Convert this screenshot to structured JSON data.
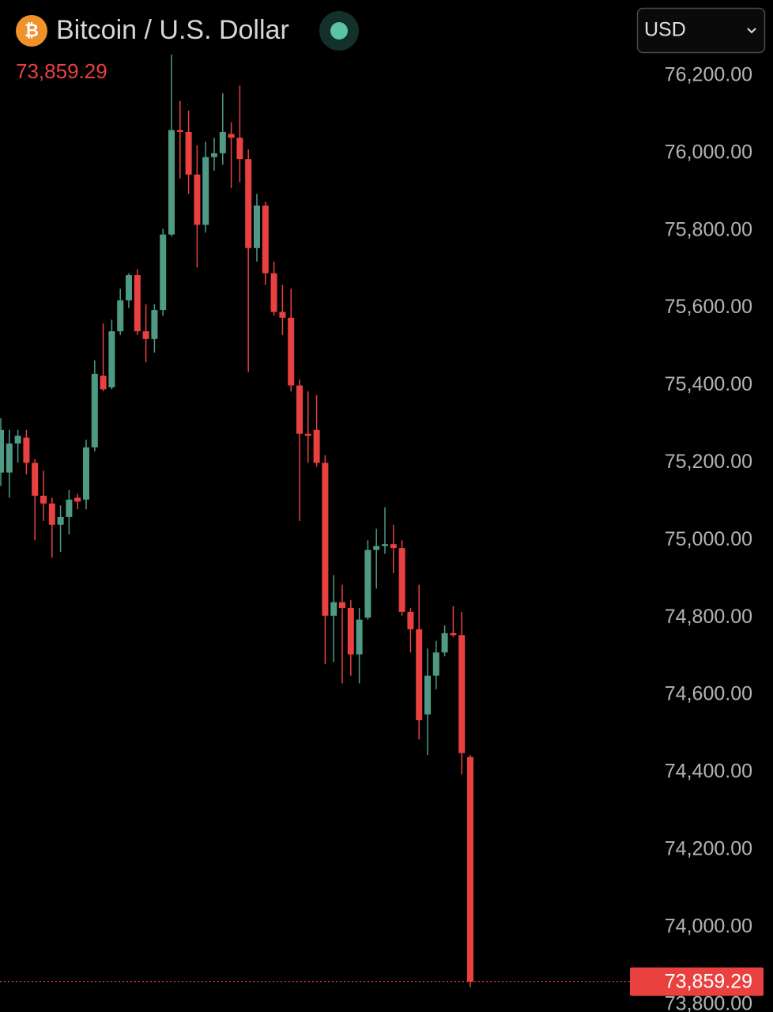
{
  "chart_data": {
    "type": "candlestick",
    "title": "Bitcoin / U.S. Dollar",
    "symbol_icon": "₿",
    "currency": "USD",
    "last_price": {
      "value": 73859.29,
      "label": "73,859.29"
    },
    "up_color": "#4f9a84",
    "down_color": "#e8413f",
    "open": [
      75175,
      75175,
      75250,
      75265,
      75200,
      75115,
      75095,
      75040,
      75060,
      75110,
      75105,
      75240,
      75425,
      75395,
      75540,
      75620,
      75685,
      75540,
      75520,
      75595,
      75790,
      76060,
      76055,
      75945,
      75815,
      75990,
      76000,
      76050,
      76040,
      75985,
      75755,
      75865,
      75690,
      75590,
      75575,
      75400,
      75275,
      75285,
      75200,
      74805,
      74840,
      74825,
      74705,
      74800,
      74975,
      74985,
      74990,
      74980,
      74815,
      74770,
      74550,
      74650,
      74710,
      74760,
      74755,
      74440
    ],
    "high": [
      75315,
      75285,
      75285,
      75285,
      75210,
      75180,
      75110,
      75090,
      75130,
      75120,
      75260,
      75465,
      75560,
      75570,
      75650,
      75690,
      75700,
      75610,
      75610,
      75805,
      76255,
      76135,
      76110,
      76020,
      76030,
      76040,
      76155,
      76080,
      76175,
      76010,
      75895,
      75875,
      75720,
      75660,
      75650,
      75415,
      75385,
      75375,
      75220,
      74910,
      74885,
      74845,
      74825,
      75000,
      75030,
      75085,
      75040,
      75000,
      74825,
      74885,
      74720,
      74740,
      74780,
      74830,
      74815,
      74445
    ],
    "low": [
      75140,
      75110,
      75200,
      75170,
      75000,
      75050,
      74955,
      74970,
      75015,
      75080,
      75080,
      75230,
      75385,
      75390,
      75530,
      75600,
      75530,
      75460,
      75485,
      75580,
      75785,
      75935,
      75895,
      75705,
      75795,
      75955,
      75970,
      75910,
      75925,
      75435,
      75720,
      75660,
      75580,
      75530,
      75385,
      75050,
      75200,
      75190,
      74680,
      74685,
      74630,
      74650,
      74630,
      74795,
      74875,
      74965,
      74915,
      74805,
      74710,
      74485,
      74445,
      74615,
      74700,
      74750,
      74395,
      73845
    ],
    "close": [
      75285,
      75250,
      75270,
      75200,
      75115,
      75095,
      75040,
      75060,
      75105,
      75100,
      75240,
      75430,
      75390,
      75540,
      75620,
      75685,
      75540,
      75520,
      75595,
      75790,
      76060,
      76055,
      75945,
      75815,
      75990,
      76000,
      76055,
      76040,
      75985,
      75755,
      75865,
      75690,
      75590,
      75575,
      75400,
      75275,
      75270,
      75200,
      74805,
      74840,
      74825,
      74705,
      74795,
      74975,
      74985,
      74990,
      74980,
      74815,
      74770,
      74535,
      74650,
      74710,
      74760,
      74755,
      74450,
      73859.29
    ],
    "ylim": [
      73781,
      76396
    ],
    "yticks": [
      {
        "value": 73800,
        "label": "73,800.00"
      },
      {
        "value": 74000,
        "label": "74,000.00"
      },
      {
        "value": 74200,
        "label": "74,200.00"
      },
      {
        "value": 74400,
        "label": "74,400.00"
      },
      {
        "value": 74600,
        "label": "74,600.00"
      },
      {
        "value": 74800,
        "label": "74,800.00"
      },
      {
        "value": 75000,
        "label": "75,000.00"
      },
      {
        "value": 75200,
        "label": "75,200.00"
      },
      {
        "value": 75400,
        "label": "75,400.00"
      },
      {
        "value": 75600,
        "label": "75,600.00"
      },
      {
        "value": 75800,
        "label": "75,800.00"
      },
      {
        "value": 76000,
        "label": "76,000.00"
      },
      {
        "value": 76200,
        "label": "76,200.00"
      }
    ]
  }
}
